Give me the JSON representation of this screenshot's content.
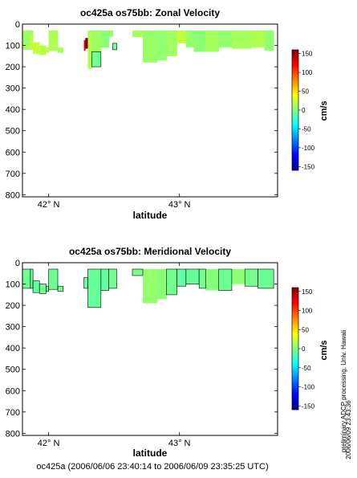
{
  "colors": {
    "colormap": [
      "#00008f",
      "#0000ff",
      "#0080ff",
      "#00ffff",
      "#80ff80",
      "#ffff00",
      "#ff8000",
      "#ff0000",
      "#800000"
    ],
    "land": "#ffffff"
  },
  "chart_data": [
    {
      "type": "heatmap",
      "title": "oc425a os75bb: Zonal Velocity",
      "xlabel": "latitude",
      "ylabel": "",
      "xlim": [
        41.8,
        43.75
      ],
      "ylim": [
        810,
        0
      ],
      "x_ticks": [
        {
          "value": 42,
          "label": "42° N"
        },
        {
          "value": 43,
          "label": "43° N"
        }
      ],
      "y_ticks": [
        0,
        100,
        200,
        300,
        400,
        500,
        600,
        700,
        800
      ],
      "colorbar": {
        "label": "cm/s",
        "range": [
          -160,
          160
        ],
        "ticks": [
          150,
          100,
          50,
          0,
          -50,
          -100,
          -150
        ]
      },
      "contours": "black line at 0 cm/s",
      "grid": false,
      "cells": [
        {
          "x0": 41.8,
          "x1": 41.86,
          "y0": 30,
          "y1": 120,
          "v": 10
        },
        {
          "x0": 41.86,
          "x1": 41.88,
          "y0": 30,
          "y1": 55,
          "v": 10
        },
        {
          "x0": 41.86,
          "x1": 41.88,
          "y0": 55,
          "y1": 120,
          "v": 20
        },
        {
          "x0": 41.88,
          "x1": 41.93,
          "y0": 85,
          "y1": 140,
          "v": 22
        },
        {
          "x0": 41.93,
          "x1": 41.98,
          "y0": 100,
          "y1": 145,
          "v": 18
        },
        {
          "x0": 41.98,
          "x1": 42.0,
          "y0": 110,
          "y1": 135,
          "v": 18
        },
        {
          "x0": 42.0,
          "x1": 42.07,
          "y0": 30,
          "y1": 125,
          "v": 14
        },
        {
          "x0": 42.07,
          "x1": 42.11,
          "y0": 110,
          "y1": 135,
          "v": 14
        },
        {
          "x0": 42.27,
          "x1": 42.28,
          "y0": 75,
          "y1": 125,
          "v": 120
        },
        {
          "x0": 42.28,
          "x1": 42.3,
          "y0": 65,
          "y1": 115,
          "v": 160
        },
        {
          "x0": 42.3,
          "x1": 42.33,
          "y0": 30,
          "y1": 210,
          "v": 15
        },
        {
          "x0": 42.33,
          "x1": 42.4,
          "y0": 30,
          "y1": 130,
          "v": 10
        },
        {
          "x0": 42.33,
          "x1": 42.4,
          "y0": 130,
          "y1": 200,
          "v": -5
        },
        {
          "x0": 42.4,
          "x1": 42.46,
          "y0": 30,
          "y1": 110,
          "v": 3
        },
        {
          "x0": 42.46,
          "x1": 42.49,
          "y0": 30,
          "y1": 60,
          "v": 5
        },
        {
          "x0": 42.49,
          "x1": 42.52,
          "y0": 90,
          "y1": 120,
          "v": -5
        },
        {
          "x0": 42.64,
          "x1": 42.72,
          "y0": 30,
          "y1": 60,
          "v": 12
        },
        {
          "x0": 42.72,
          "x1": 42.83,
          "y0": 30,
          "y1": 180,
          "v": 8
        },
        {
          "x0": 42.83,
          "x1": 42.9,
          "y0": 30,
          "y1": 170,
          "v": 5
        },
        {
          "x0": 42.9,
          "x1": 42.98,
          "y0": 30,
          "y1": 150,
          "v": 10
        },
        {
          "x0": 42.98,
          "x1": 43.05,
          "y0": 30,
          "y1": 90,
          "v": 20
        },
        {
          "x0": 43.05,
          "x1": 43.11,
          "y0": 30,
          "y1": 110,
          "v": 6
        },
        {
          "x0": 43.11,
          "x1": 43.2,
          "y0": 30,
          "y1": 130,
          "v": 3
        },
        {
          "x0": 43.2,
          "x1": 43.3,
          "y0": 30,
          "y1": 130,
          "v": 12
        },
        {
          "x0": 43.3,
          "x1": 43.4,
          "y0": 30,
          "y1": 110,
          "v": 5
        },
        {
          "x0": 43.4,
          "x1": 43.55,
          "y0": 30,
          "y1": 115,
          "v": 12
        },
        {
          "x0": 43.55,
          "x1": 43.65,
          "y0": 30,
          "y1": 110,
          "v": 15
        },
        {
          "x0": 43.65,
          "x1": 43.72,
          "y0": 30,
          "y1": 125,
          "v": 5
        }
      ]
    },
    {
      "type": "heatmap",
      "title": "oc425a os75bb: Meridional Velocity",
      "xlabel": "latitude",
      "ylabel": "",
      "xlim": [
        41.8,
        43.75
      ],
      "ylim": [
        810,
        0
      ],
      "x_ticks": [
        {
          "value": 42,
          "label": "42° N"
        },
        {
          "value": 43,
          "label": "43° N"
        }
      ],
      "y_ticks": [
        0,
        100,
        200,
        300,
        400,
        500,
        600,
        700,
        800
      ],
      "colorbar": {
        "label": "cm/s",
        "range": [
          -160,
          160
        ],
        "ticks": [
          150,
          100,
          50,
          0,
          -50,
          -100,
          -150
        ]
      },
      "contours": "black line at 0 cm/s",
      "grid": false,
      "cells": [
        {
          "x0": 41.8,
          "x1": 41.86,
          "y0": 30,
          "y1": 120,
          "v": -5
        },
        {
          "x0": 41.86,
          "x1": 41.88,
          "y0": 30,
          "y1": 120,
          "v": -8
        },
        {
          "x0": 41.88,
          "x1": 41.93,
          "y0": 85,
          "y1": 140,
          "v": -10
        },
        {
          "x0": 41.93,
          "x1": 41.98,
          "y0": 100,
          "y1": 145,
          "v": -6
        },
        {
          "x0": 41.98,
          "x1": 42.0,
          "y0": 110,
          "y1": 135,
          "v": -3
        },
        {
          "x0": 42.0,
          "x1": 42.07,
          "y0": 30,
          "y1": 125,
          "v": -6
        },
        {
          "x0": 42.07,
          "x1": 42.11,
          "y0": 110,
          "y1": 135,
          "v": -4
        },
        {
          "x0": 42.27,
          "x1": 42.3,
          "y0": 70,
          "y1": 120,
          "v": -12
        },
        {
          "x0": 42.3,
          "x1": 42.4,
          "y0": 30,
          "y1": 210,
          "v": -8
        },
        {
          "x0": 42.4,
          "x1": 42.46,
          "y0": 30,
          "y1": 130,
          "v": -10
        },
        {
          "x0": 42.46,
          "x1": 42.52,
          "y0": 30,
          "y1": 120,
          "v": -5
        },
        {
          "x0": 42.64,
          "x1": 42.72,
          "y0": 30,
          "y1": 60,
          "v": -2
        },
        {
          "x0": 42.72,
          "x1": 42.83,
          "y0": 30,
          "y1": 190,
          "v": 6
        },
        {
          "x0": 42.83,
          "x1": 42.9,
          "y0": 30,
          "y1": 170,
          "v": 3
        },
        {
          "x0": 42.9,
          "x1": 42.98,
          "y0": 30,
          "y1": 150,
          "v": -4
        },
        {
          "x0": 42.98,
          "x1": 43.05,
          "y0": 30,
          "y1": 110,
          "v": -12
        },
        {
          "x0": 43.05,
          "x1": 43.15,
          "y0": 30,
          "y1": 100,
          "v": -8
        },
        {
          "x0": 43.15,
          "x1": 43.2,
          "y0": 30,
          "y1": 120,
          "v": -4
        },
        {
          "x0": 43.2,
          "x1": 43.3,
          "y0": 30,
          "y1": 130,
          "v": 2
        },
        {
          "x0": 43.3,
          "x1": 43.4,
          "y0": 30,
          "y1": 130,
          "v": -6
        },
        {
          "x0": 43.4,
          "x1": 43.5,
          "y0": 30,
          "y1": 100,
          "v": 4
        },
        {
          "x0": 43.5,
          "x1": 43.6,
          "y0": 30,
          "y1": 110,
          "v": -3
        },
        {
          "x0": 43.6,
          "x1": 43.72,
          "y0": 30,
          "y1": 120,
          "v": -7
        }
      ]
    }
  ],
  "footer": {
    "cruise_range": "oc425a (2006/06/06 23:40:14 to 2006/06/09 23:35:25 UTC)",
    "processing_note": "preliminary ADCP processing,   Univ. Hawaii",
    "timestamp": "2006/06/09 23:43:36"
  }
}
